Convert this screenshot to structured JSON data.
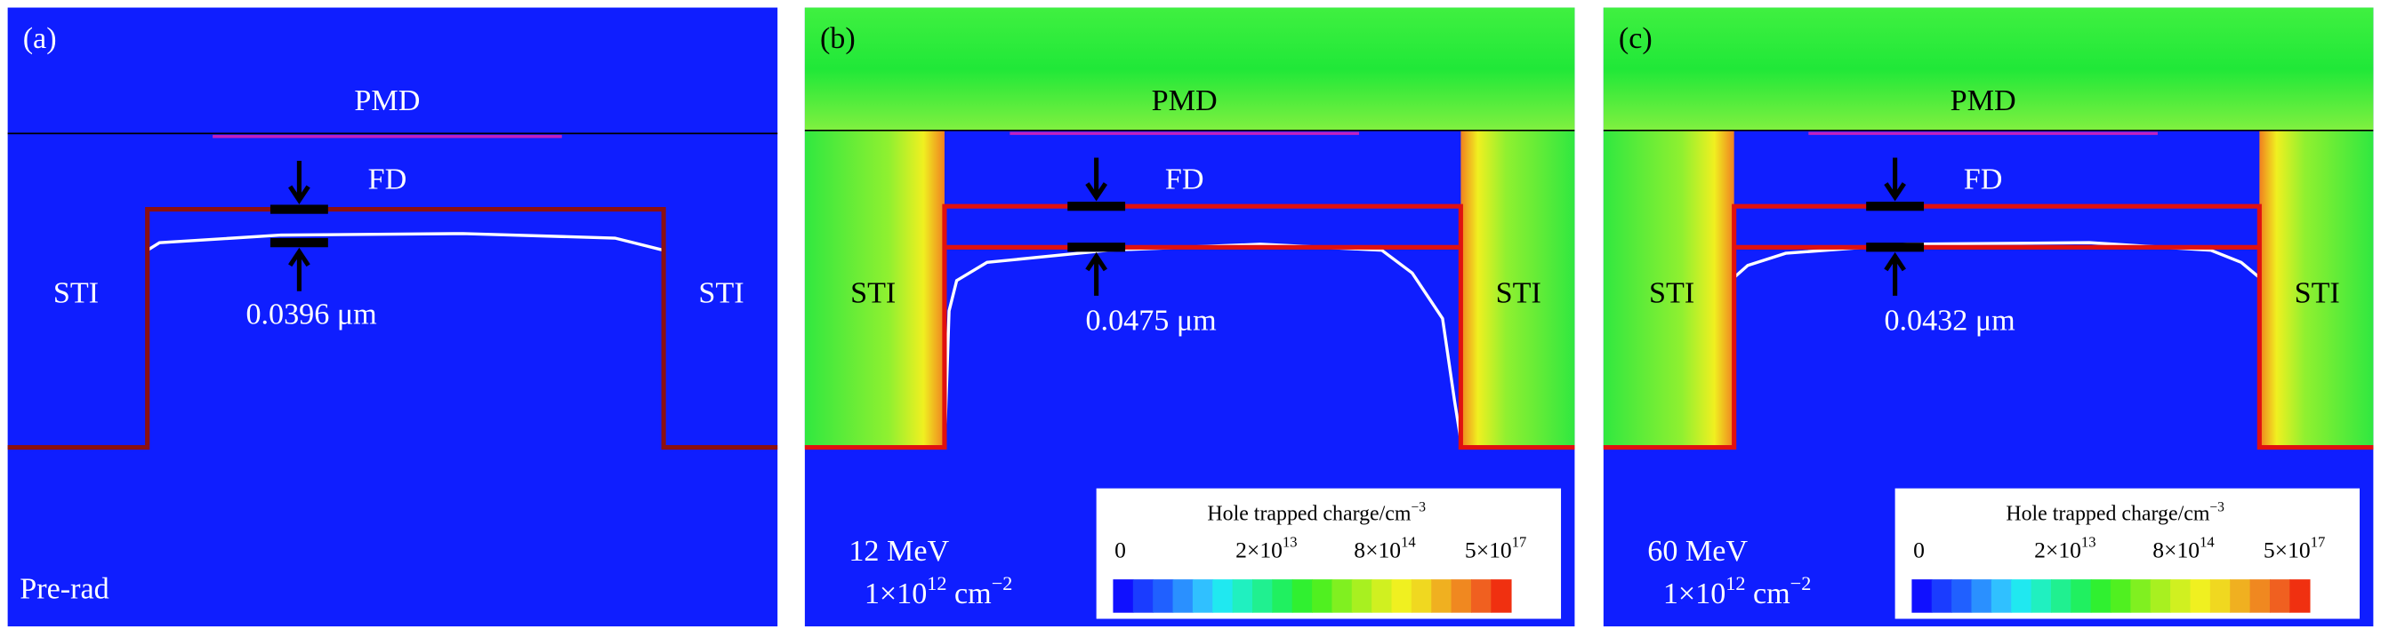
{
  "panels": [
    {
      "label": "(a)",
      "pmd": "PMD",
      "fd": "FD",
      "sti_left": "STI",
      "sti_right": "STI",
      "thickness": "0.0396 μm",
      "note": "Pre-rad",
      "outline_color": "#8b1010"
    },
    {
      "label": "(b)",
      "pmd": "PMD",
      "fd": "FD",
      "sti_left": "STI",
      "sti_right": "STI",
      "thickness": "0.0475 μm",
      "energy": "12 MeV",
      "fluence": {
        "base": "1×10",
        "exp": "12",
        "unit": " cm",
        "unit_exp": "−2"
      },
      "outline_color": "#e01010"
    },
    {
      "label": "(c)",
      "pmd": "PMD",
      "fd": "FD",
      "sti_left": "STI",
      "sti_right": "STI",
      "thickness": "0.0432 μm",
      "energy": "60 MeV",
      "fluence": {
        "base": "1×10",
        "exp": "12",
        "unit": " cm",
        "unit_exp": "−2"
      },
      "outline_color": "#e01010"
    }
  ],
  "colorbar": {
    "title": {
      "text": "Hole trapped charge/cm",
      "exp": "−3"
    },
    "ticks": [
      {
        "base": "0"
      },
      {
        "base": "2×10",
        "exp": "13"
      },
      {
        "base": "8×10",
        "exp": "14"
      },
      {
        "base": "5×10",
        "exp": "17"
      }
    ],
    "colors": [
      "#1010ff",
      "#1a3cff",
      "#2060ff",
      "#2a90ff",
      "#30c0ff",
      "#20e8f0",
      "#20f0c0",
      "#20f090",
      "#20f060",
      "#30f030",
      "#50f020",
      "#80f020",
      "#a8f020",
      "#d0f020",
      "#f0f020",
      "#f0d820",
      "#f0b020",
      "#f08820",
      "#f06020",
      "#f03010"
    ]
  }
}
